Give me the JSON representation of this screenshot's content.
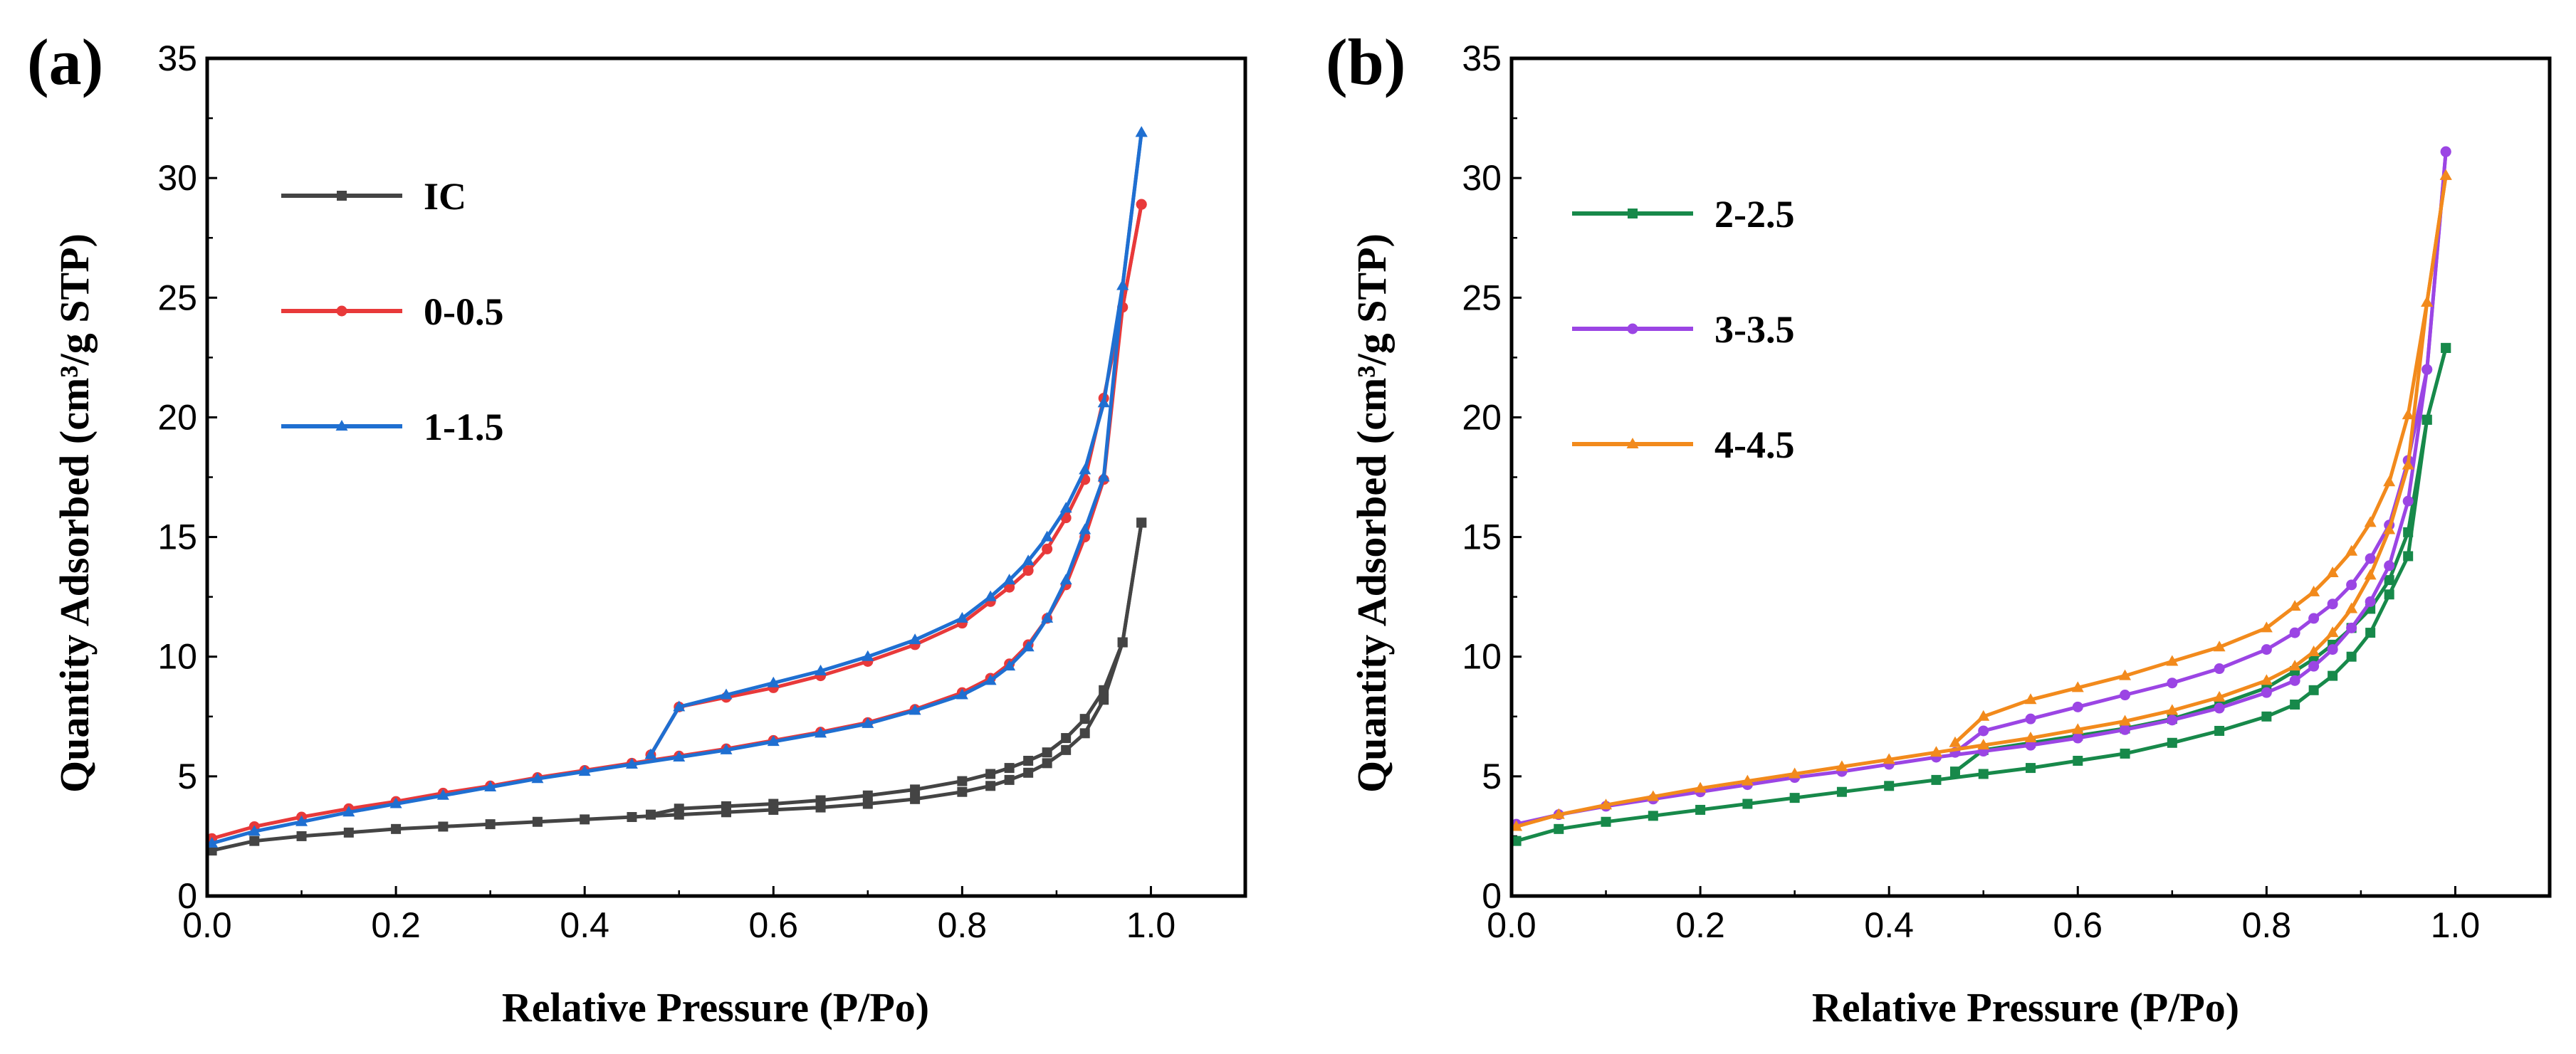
{
  "chart_data": [
    {
      "type": "line",
      "panel_label": "(a)",
      "xlabel": "Relative Pressure (P/Po)",
      "ylabel": "Quantity Adsorbed (cm³/g STP)",
      "xlim": [
        0,
        1.1
      ],
      "ylim": [
        0,
        35
      ],
      "xticks": [
        "0.0",
        "0.2",
        "0.4",
        "0.6",
        "0.8",
        "1.0"
      ],
      "xtick_values": [
        0,
        0.2,
        0.4,
        0.6,
        0.8,
        1.0
      ],
      "yticks": [
        "0",
        "5",
        "10",
        "15",
        "20",
        "25",
        "30",
        "35"
      ],
      "ytick_values": [
        0,
        5,
        10,
        15,
        20,
        25,
        30,
        35
      ],
      "legend_position": "upper-left",
      "series": [
        {
          "name": "IC",
          "color": "#444444",
          "marker": "square",
          "adsorption": {
            "x": [
              0.005,
              0.05,
              0.1,
              0.15,
              0.2,
              0.25,
              0.3,
              0.35,
              0.4,
              0.45,
              0.5,
              0.55,
              0.6,
              0.65,
              0.7,
              0.75,
              0.8,
              0.83,
              0.85,
              0.87,
              0.89,
              0.91,
              0.93,
              0.95,
              0.97,
              0.99
            ],
            "y": [
              1.9,
              2.3,
              2.5,
              2.65,
              2.8,
              2.9,
              3.0,
              3.1,
              3.2,
              3.3,
              3.4,
              3.5,
              3.6,
              3.7,
              3.85,
              4.05,
              4.35,
              4.6,
              4.85,
              5.15,
              5.55,
              6.1,
              6.8,
              8.2,
              10.6,
              15.6
            ]
          },
          "desorption": {
            "x": [
              0.99,
              0.97,
              0.95,
              0.93,
              0.91,
              0.89,
              0.87,
              0.85,
              0.83,
              0.8,
              0.75,
              0.7,
              0.65,
              0.6,
              0.55,
              0.5,
              0.47
            ],
            "y": [
              15.6,
              10.6,
              8.6,
              7.4,
              6.6,
              6.0,
              5.65,
              5.35,
              5.1,
              4.8,
              4.45,
              4.2,
              4.0,
              3.85,
              3.75,
              3.65,
              3.4
            ]
          }
        },
        {
          "name": "0-0.5",
          "color": "#e8393a",
          "marker": "circle",
          "adsorption": {
            "x": [
              0.005,
              0.05,
              0.1,
              0.15,
              0.2,
              0.25,
              0.3,
              0.35,
              0.4,
              0.45,
              0.5,
              0.55,
              0.6,
              0.65,
              0.7,
              0.75,
              0.8,
              0.83,
              0.85,
              0.87,
              0.89,
              0.91,
              0.93,
              0.95,
              0.97,
              0.99
            ],
            "y": [
              2.4,
              2.9,
              3.3,
              3.65,
              3.95,
              4.3,
              4.6,
              4.95,
              5.25,
              5.55,
              5.85,
              6.15,
              6.5,
              6.85,
              7.25,
              7.8,
              8.5,
              9.1,
              9.7,
              10.5,
              11.6,
              13.0,
              15.0,
              17.4,
              24.6,
              28.9
            ]
          },
          "desorption": {
            "x": [
              0.99,
              0.97,
              0.95,
              0.93,
              0.91,
              0.89,
              0.87,
              0.85,
              0.83,
              0.8,
              0.75,
              0.7,
              0.65,
              0.6,
              0.55,
              0.5,
              0.47
            ],
            "y": [
              28.9,
              24.6,
              20.8,
              17.4,
              15.8,
              14.5,
              13.6,
              12.9,
              12.3,
              11.4,
              10.5,
              9.8,
              9.2,
              8.7,
              8.3,
              7.9,
              5.9
            ]
          }
        },
        {
          "name": "1-1.5",
          "color": "#1f6fd1",
          "marker": "triangle",
          "adsorption": {
            "x": [
              0.005,
              0.05,
              0.1,
              0.15,
              0.2,
              0.25,
              0.3,
              0.35,
              0.4,
              0.45,
              0.5,
              0.55,
              0.6,
              0.65,
              0.7,
              0.75,
              0.8,
              0.83,
              0.85,
              0.87,
              0.89,
              0.91,
              0.93,
              0.95,
              0.97,
              0.99
            ],
            "y": [
              2.2,
              2.7,
              3.1,
              3.5,
              3.85,
              4.2,
              4.55,
              4.9,
              5.2,
              5.5,
              5.8,
              6.1,
              6.45,
              6.8,
              7.2,
              7.75,
              8.4,
              9.0,
              9.6,
              10.4,
              11.6,
              13.2,
              15.3,
              17.5,
              25.5,
              31.9
            ]
          },
          "desorption": {
            "x": [
              0.99,
              0.97,
              0.95,
              0.93,
              0.91,
              0.89,
              0.87,
              0.85,
              0.83,
              0.8,
              0.75,
              0.7,
              0.65,
              0.6,
              0.55,
              0.5,
              0.47
            ],
            "y": [
              31.9,
              25.5,
              20.6,
              17.8,
              16.2,
              15.0,
              14.0,
              13.2,
              12.5,
              11.6,
              10.7,
              10.0,
              9.4,
              8.9,
              8.4,
              7.9,
              5.9
            ]
          }
        }
      ]
    },
    {
      "type": "line",
      "panel_label": "(b)",
      "xlabel": "Relative Pressure (P/Po)",
      "ylabel": "Quantity Adsorbed (cm³/g STP)",
      "xlim": [
        0,
        1.1
      ],
      "ylim": [
        0,
        35
      ],
      "xticks": [
        "0.0",
        "0.2",
        "0.4",
        "0.6",
        "0.8",
        "1.0"
      ],
      "xtick_values": [
        0,
        0.2,
        0.4,
        0.6,
        0.8,
        1.0
      ],
      "yticks": [
        "0",
        "5",
        "10",
        "15",
        "20",
        "25",
        "30",
        "35"
      ],
      "ytick_values": [
        0,
        5,
        10,
        15,
        20,
        25,
        30,
        35
      ],
      "legend_position": "upper-left",
      "series": [
        {
          "name": "2-2.5",
          "color": "#17894a",
          "marker": "square",
          "adsorption": {
            "x": [
              0.005,
              0.05,
              0.1,
              0.15,
              0.2,
              0.25,
              0.3,
              0.35,
              0.4,
              0.45,
              0.5,
              0.55,
              0.6,
              0.65,
              0.7,
              0.75,
              0.8,
              0.83,
              0.85,
              0.87,
              0.89,
              0.91,
              0.93,
              0.95,
              0.97,
              0.99
            ],
            "y": [
              2.3,
              2.8,
              3.1,
              3.35,
              3.6,
              3.85,
              4.1,
              4.35,
              4.6,
              4.85,
              5.1,
              5.35,
              5.65,
              5.95,
              6.4,
              6.9,
              7.5,
              8.0,
              8.6,
              9.2,
              10.0,
              11.0,
              12.6,
              14.2,
              19.9,
              22.9
            ]
          },
          "desorption": {
            "x": [
              0.99,
              0.97,
              0.95,
              0.93,
              0.91,
              0.89,
              0.87,
              0.85,
              0.83,
              0.8,
              0.75,
              0.7,
              0.65,
              0.6,
              0.55,
              0.5,
              0.47
            ],
            "y": [
              22.9,
              19.9,
              15.2,
              13.2,
              12.0,
              11.2,
              10.5,
              9.9,
              9.4,
              8.7,
              8.0,
              7.4,
              7.0,
              6.7,
              6.4,
              6.1,
              5.2
            ]
          }
        },
        {
          "name": "3-3.5",
          "color": "#9b45e4",
          "marker": "circle",
          "adsorption": {
            "x": [
              0.005,
              0.05,
              0.1,
              0.15,
              0.2,
              0.25,
              0.3,
              0.35,
              0.4,
              0.45,
              0.5,
              0.55,
              0.6,
              0.65,
              0.7,
              0.75,
              0.8,
              0.83,
              0.85,
              0.87,
              0.89,
              0.91,
              0.93,
              0.95,
              0.97,
              0.99
            ],
            "y": [
              3.0,
              3.4,
              3.75,
              4.05,
              4.35,
              4.65,
              4.95,
              5.2,
              5.5,
              5.8,
              6.05,
              6.3,
              6.6,
              6.95,
              7.35,
              7.85,
              8.5,
              9.0,
              9.6,
              10.3,
              11.2,
              12.3,
              13.8,
              16.5,
              22.0,
              31.1
            ]
          },
          "desorption": {
            "x": [
              0.99,
              0.97,
              0.95,
              0.93,
              0.91,
              0.89,
              0.87,
              0.85,
              0.83,
              0.8,
              0.75,
              0.7,
              0.65,
              0.6,
              0.55,
              0.5,
              0.47
            ],
            "y": [
              31.1,
              22.0,
              18.2,
              15.5,
              14.1,
              13.0,
              12.2,
              11.6,
              11.0,
              10.3,
              9.5,
              8.9,
              8.4,
              7.9,
              7.4,
              6.9,
              6.0
            ]
          }
        },
        {
          "name": "4-4.5",
          "color": "#f28a1c",
          "marker": "triangle",
          "adsorption": {
            "x": [
              0.005,
              0.05,
              0.1,
              0.15,
              0.2,
              0.25,
              0.3,
              0.35,
              0.4,
              0.45,
              0.5,
              0.55,
              0.6,
              0.65,
              0.7,
              0.75,
              0.8,
              0.83,
              0.85,
              0.87,
              0.89,
              0.91,
              0.93,
              0.95,
              0.97,
              0.99
            ],
            "y": [
              2.9,
              3.4,
              3.8,
              4.15,
              4.5,
              4.8,
              5.1,
              5.4,
              5.7,
              6.0,
              6.3,
              6.6,
              6.95,
              7.3,
              7.75,
              8.3,
              9.0,
              9.6,
              10.2,
              11.0,
              12.0,
              13.4,
              15.3,
              18.0,
              24.8,
              30.1
            ]
          },
          "desorption": {
            "x": [
              0.99,
              0.97,
              0.95,
              0.93,
              0.91,
              0.89,
              0.87,
              0.85,
              0.83,
              0.8,
              0.75,
              0.7,
              0.65,
              0.6,
              0.55,
              0.5,
              0.47
            ],
            "y": [
              30.1,
              24.8,
              20.1,
              17.3,
              15.6,
              14.4,
              13.5,
              12.7,
              12.1,
              11.2,
              10.4,
              9.8,
              9.2,
              8.7,
              8.2,
              7.5,
              6.4
            ]
          }
        }
      ]
    }
  ]
}
